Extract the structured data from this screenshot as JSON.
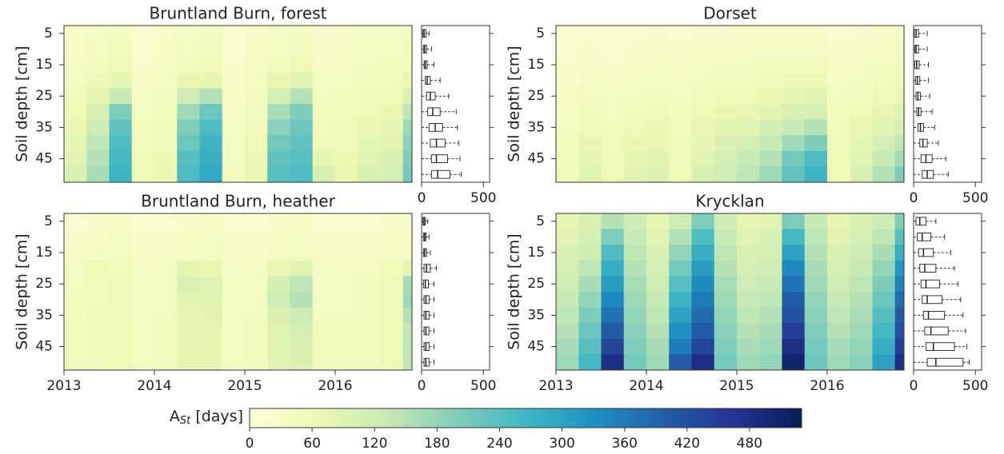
{
  "chart_data": [
    {
      "type": "heatmap",
      "title": "Bruntland Burn, forest",
      "ylabel": "Soil depth [cm]",
      "x_bins": [
        2013,
        2013.25,
        2013.5,
        2013.75,
        2014,
        2014.25,
        2014.5,
        2014.75,
        2015,
        2015.25,
        2015.5,
        2015.75,
        2016,
        2016.25,
        2016.5,
        2016.75,
        2016.85
      ],
      "xlim": [
        2013,
        2016.85
      ],
      "categories": [
        5,
        10,
        15,
        20,
        25,
        30,
        35,
        40,
        45,
        50
      ],
      "ylim": [
        2.5,
        52.5
      ],
      "yticks": [
        5,
        15,
        25,
        35,
        45
      ],
      "z": [
        [
          30,
          30,
          35,
          40,
          50,
          60,
          70,
          80,
          90,
          100
        ],
        [
          35,
          40,
          45,
          60,
          80,
          100,
          120,
          140,
          150,
          160
        ],
        [
          40,
          45,
          55,
          80,
          130,
          200,
          230,
          250,
          260,
          270
        ],
        [
          20,
          20,
          25,
          30,
          35,
          40,
          45,
          50,
          55,
          60
        ],
        [
          30,
          30,
          35,
          40,
          45,
          50,
          55,
          60,
          65,
          70
        ],
        [
          35,
          40,
          50,
          70,
          120,
          170,
          200,
          220,
          240,
          250
        ],
        [
          40,
          45,
          55,
          80,
          150,
          220,
          250,
          270,
          280,
          290
        ],
        [
          20,
          20,
          25,
          30,
          30,
          35,
          35,
          40,
          40,
          45
        ],
        [
          30,
          30,
          35,
          40,
          45,
          50,
          55,
          60,
          65,
          70
        ],
        [
          35,
          40,
          50,
          70,
          110,
          160,
          190,
          210,
          230,
          240
        ],
        [
          40,
          45,
          60,
          90,
          150,
          200,
          220,
          230,
          240,
          250
        ],
        [
          25,
          25,
          30,
          35,
          40,
          45,
          50,
          60,
          80,
          100
        ],
        [
          30,
          30,
          35,
          40,
          45,
          50,
          55,
          60,
          65,
          70
        ],
        [
          35,
          35,
          40,
          45,
          55,
          60,
          70,
          80,
          90,
          100
        ],
        [
          35,
          40,
          45,
          50,
          60,
          70,
          80,
          90,
          100,
          110
        ],
        [
          40,
          45,
          50,
          70,
          100,
          140,
          170,
          190,
          200,
          210
        ]
      ],
      "box": {
        "xlim": [
          0,
          550
        ],
        "xticks": [
          0,
          500
        ],
        "whislo": [
          0,
          0,
          0,
          0,
          0,
          0,
          0,
          0,
          0,
          0
        ],
        "q1": [
          10,
          15,
          20,
          30,
          40,
          50,
          60,
          70,
          80,
          80
        ],
        "median": [
          20,
          25,
          30,
          45,
          70,
          90,
          110,
          120,
          120,
          130
        ],
        "q3": [
          35,
          40,
          45,
          70,
          110,
          150,
          170,
          190,
          210,
          230
        ],
        "whishi": [
          60,
          80,
          100,
          150,
          220,
          280,
          290,
          300,
          310,
          320
        ]
      }
    },
    {
      "type": "heatmap",
      "title": "Dorset",
      "ylabel": "Soil depth [cm]",
      "x_bins": [
        2013,
        2013.25,
        2013.5,
        2013.75,
        2014,
        2014.25,
        2014.5,
        2014.75,
        2015,
        2015.25,
        2015.5,
        2015.75,
        2016,
        2016.25,
        2016.5,
        2016.75,
        2016.85
      ],
      "xlim": [
        2013,
        2016.85
      ],
      "categories": [
        5,
        10,
        15,
        20,
        25,
        30,
        35,
        40,
        45,
        50
      ],
      "ylim": [
        2.5,
        52.5
      ],
      "yticks": [
        5,
        15,
        25,
        35,
        45
      ],
      "z": [
        [
          20,
          20,
          25,
          25,
          30,
          35,
          40,
          45,
          50,
          55
        ],
        [
          20,
          25,
          30,
          35,
          40,
          50,
          60,
          70,
          80,
          90
        ],
        [
          20,
          20,
          25,
          30,
          35,
          40,
          45,
          50,
          55,
          60
        ],
        [
          20,
          25,
          30,
          35,
          40,
          50,
          60,
          70,
          80,
          90
        ],
        [
          25,
          30,
          35,
          40,
          45,
          55,
          65,
          75,
          85,
          95
        ],
        [
          20,
          25,
          30,
          35,
          40,
          45,
          50,
          55,
          60,
          60
        ],
        [
          25,
          30,
          35,
          40,
          50,
          60,
          70,
          80,
          90,
          100
        ],
        [
          25,
          30,
          35,
          45,
          55,
          70,
          85,
          100,
          110,
          120
        ],
        [
          30,
          35,
          40,
          50,
          60,
          75,
          90,
          110,
          130,
          140
        ],
        [
          30,
          35,
          45,
          55,
          70,
          85,
          110,
          130,
          150,
          170
        ],
        [
          30,
          35,
          45,
          60,
          80,
          100,
          130,
          170,
          210,
          230
        ],
        [
          30,
          35,
          45,
          60,
          85,
          110,
          150,
          200,
          250,
          270
        ],
        [
          20,
          25,
          30,
          35,
          40,
          45,
          50,
          55,
          60,
          60
        ],
        [
          25,
          30,
          35,
          40,
          50,
          60,
          70,
          80,
          90,
          100
        ],
        [
          30,
          35,
          40,
          50,
          60,
          75,
          90,
          110,
          130,
          150
        ],
        [
          30,
          35,
          45,
          55,
          70,
          90,
          110,
          140,
          170,
          200
        ]
      ],
      "box": {
        "xlim": [
          0,
          550
        ],
        "xticks": [
          0,
          500
        ],
        "whislo": [
          0,
          0,
          0,
          0,
          0,
          0,
          0,
          0,
          0,
          0
        ],
        "q1": [
          5,
          10,
          10,
          15,
          20,
          25,
          35,
          50,
          60,
          70
        ],
        "median": [
          20,
          20,
          25,
          30,
          35,
          40,
          55,
          75,
          100,
          110
        ],
        "q3": [
          40,
          40,
          45,
          50,
          55,
          60,
          80,
          110,
          150,
          160
        ],
        "whishi": [
          110,
          110,
          120,
          120,
          130,
          150,
          170,
          200,
          260,
          280
        ]
      }
    },
    {
      "type": "heatmap",
      "title": "Bruntland Burn, heather",
      "ylabel": "Soil depth [cm]",
      "x_bins": [
        2013,
        2013.25,
        2013.5,
        2013.75,
        2014,
        2014.25,
        2014.5,
        2014.75,
        2015,
        2015.25,
        2015.5,
        2015.75,
        2016,
        2016.25,
        2016.5,
        2016.75,
        2016.85
      ],
      "xlim": [
        2013,
        2016.85
      ],
      "xticks": [
        2013,
        2014,
        2015,
        2016
      ],
      "categories": [
        5,
        10,
        15,
        20,
        25,
        30,
        35,
        40,
        45,
        50
      ],
      "ylim": [
        2.5,
        52.5
      ],
      "yticks": [
        5,
        15,
        25,
        35,
        45
      ],
      "z": [
        [
          20,
          25,
          30,
          35,
          40,
          45,
          45,
          50,
          50,
          50
        ],
        [
          25,
          30,
          35,
          60,
          50,
          50,
          55,
          55,
          55,
          55
        ],
        [
          30,
          35,
          40,
          50,
          60,
          55,
          55,
          60,
          60,
          60
        ],
        [
          20,
          25,
          30,
          35,
          35,
          40,
          40,
          40,
          40,
          40
        ],
        [
          20,
          25,
          30,
          35,
          40,
          40,
          40,
          45,
          45,
          45
        ],
        [
          25,
          30,
          35,
          80,
          100,
          90,
          80,
          80,
          80,
          80
        ],
        [
          30,
          35,
          40,
          70,
          90,
          90,
          85,
          80,
          80,
          80
        ],
        [
          20,
          25,
          30,
          35,
          35,
          40,
          40,
          40,
          40,
          40
        ],
        [
          20,
          25,
          30,
          35,
          40,
          40,
          40,
          45,
          45,
          45
        ],
        [
          25,
          30,
          35,
          70,
          110,
          120,
          100,
          90,
          90,
          90
        ],
        [
          30,
          35,
          40,
          90,
          140,
          150,
          120,
          110,
          100,
          100
        ],
        [
          20,
          25,
          30,
          35,
          40,
          40,
          40,
          45,
          45,
          45
        ],
        [
          20,
          25,
          30,
          35,
          40,
          40,
          40,
          45,
          45,
          45
        ],
        [
          20,
          25,
          30,
          40,
          45,
          45,
          45,
          50,
          50,
          50
        ],
        [
          25,
          30,
          35,
          50,
          60,
          60,
          60,
          60,
          60,
          60
        ],
        [
          25,
          30,
          35,
          80,
          160,
          170,
          150,
          140,
          140,
          140
        ]
      ],
      "box": {
        "xlim": [
          0,
          550
        ],
        "xticks": [
          0,
          500
        ],
        "whislo": [
          0,
          0,
          0,
          0,
          0,
          0,
          0,
          0,
          0,
          0
        ],
        "q1": [
          10,
          15,
          15,
          20,
          15,
          20,
          20,
          20,
          20,
          20
        ],
        "median": [
          20,
          25,
          25,
          40,
          30,
          35,
          35,
          35,
          35,
          35
        ],
        "q3": [
          30,
          35,
          40,
          70,
          55,
          60,
          60,
          60,
          60,
          60
        ],
        "whishi": [
          50,
          60,
          70,
          120,
          100,
          100,
          100,
          100,
          100,
          100
        ]
      }
    },
    {
      "type": "heatmap",
      "title": "Krycklan",
      "ylabel": "Soil depth [cm]",
      "x_bins": [
        2013,
        2013.25,
        2013.5,
        2013.75,
        2014,
        2014.25,
        2014.5,
        2014.75,
        2015,
        2015.25,
        2015.5,
        2015.75,
        2016,
        2016.25,
        2016.5,
        2016.75,
        2016.85
      ],
      "xlim": [
        2013,
        2016.85
      ],
      "xticks": [
        2013,
        2014,
        2015,
        2016
      ],
      "categories": [
        5,
        10,
        15,
        20,
        25,
        30,
        35,
        40,
        45,
        50
      ],
      "ylim": [
        2.5,
        52.5
      ],
      "yticks": [
        5,
        15,
        25,
        35,
        45
      ],
      "z": [
        [
          80,
          90,
          100,
          110,
          120,
          130,
          140,
          150,
          160,
          170
        ],
        [
          100,
          110,
          120,
          140,
          160,
          180,
          200,
          220,
          240,
          260
        ],
        [
          150,
          200,
          250,
          280,
          310,
          340,
          370,
          400,
          440,
          480
        ],
        [
          120,
          130,
          140,
          150,
          160,
          170,
          180,
          190,
          200,
          210
        ],
        [
          80,
          90,
          100,
          110,
          120,
          130,
          140,
          150,
          160,
          170
        ],
        [
          120,
          150,
          180,
          210,
          240,
          270,
          300,
          330,
          360,
          400
        ],
        [
          200,
          250,
          280,
          310,
          340,
          360,
          380,
          400,
          440,
          480
        ],
        [
          120,
          130,
          140,
          150,
          160,
          170,
          180,
          190,
          200,
          210
        ],
        [
          80,
          90,
          100,
          110,
          120,
          130,
          140,
          150,
          160,
          170
        ],
        [
          90,
          100,
          110,
          120,
          130,
          140,
          150,
          160,
          170,
          180
        ],
        [
          200,
          260,
          300,
          340,
          370,
          400,
          420,
          450,
          480,
          510
        ],
        [
          130,
          140,
          150,
          160,
          170,
          180,
          190,
          200,
          210,
          220
        ],
        [
          80,
          90,
          100,
          110,
          120,
          130,
          140,
          150,
          160,
          170
        ],
        [
          100,
          110,
          120,
          130,
          140,
          150,
          160,
          170,
          180,
          190
        ],
        [
          120,
          140,
          160,
          180,
          200,
          220,
          240,
          260,
          280,
          300
        ],
        [
          200,
          240,
          280,
          320,
          350,
          380,
          400,
          420,
          450,
          480
        ]
      ],
      "box": {
        "xlim": [
          0,
          550
        ],
        "xticks": [
          0,
          500
        ],
        "whislo": [
          0,
          0,
          0,
          0,
          0,
          0,
          0,
          0,
          0,
          0
        ],
        "q1": [
          20,
          30,
          40,
          50,
          60,
          70,
          80,
          90,
          100,
          110
        ],
        "median": [
          50,
          70,
          80,
          90,
          100,
          110,
          120,
          140,
          160,
          180
        ],
        "q3": [
          100,
          140,
          160,
          180,
          210,
          230,
          250,
          280,
          330,
          400
        ],
        "whishi": [
          180,
          250,
          300,
          330,
          360,
          380,
          400,
          420,
          430,
          450
        ]
      }
    },
    {
      "type": "colorbar",
      "label_main": "A",
      "label_sub": "St",
      "label_rest": " [days]",
      "lim": [
        0,
        530
      ],
      "ticks": [
        0,
        60,
        120,
        180,
        240,
        300,
        360,
        420,
        480
      ],
      "colors": [
        "#ffffd9",
        "#edf8b1",
        "#c7e9b4",
        "#7fcdbb",
        "#41b6c4",
        "#1d91c0",
        "#225ea8",
        "#253494",
        "#081d58"
      ]
    }
  ]
}
